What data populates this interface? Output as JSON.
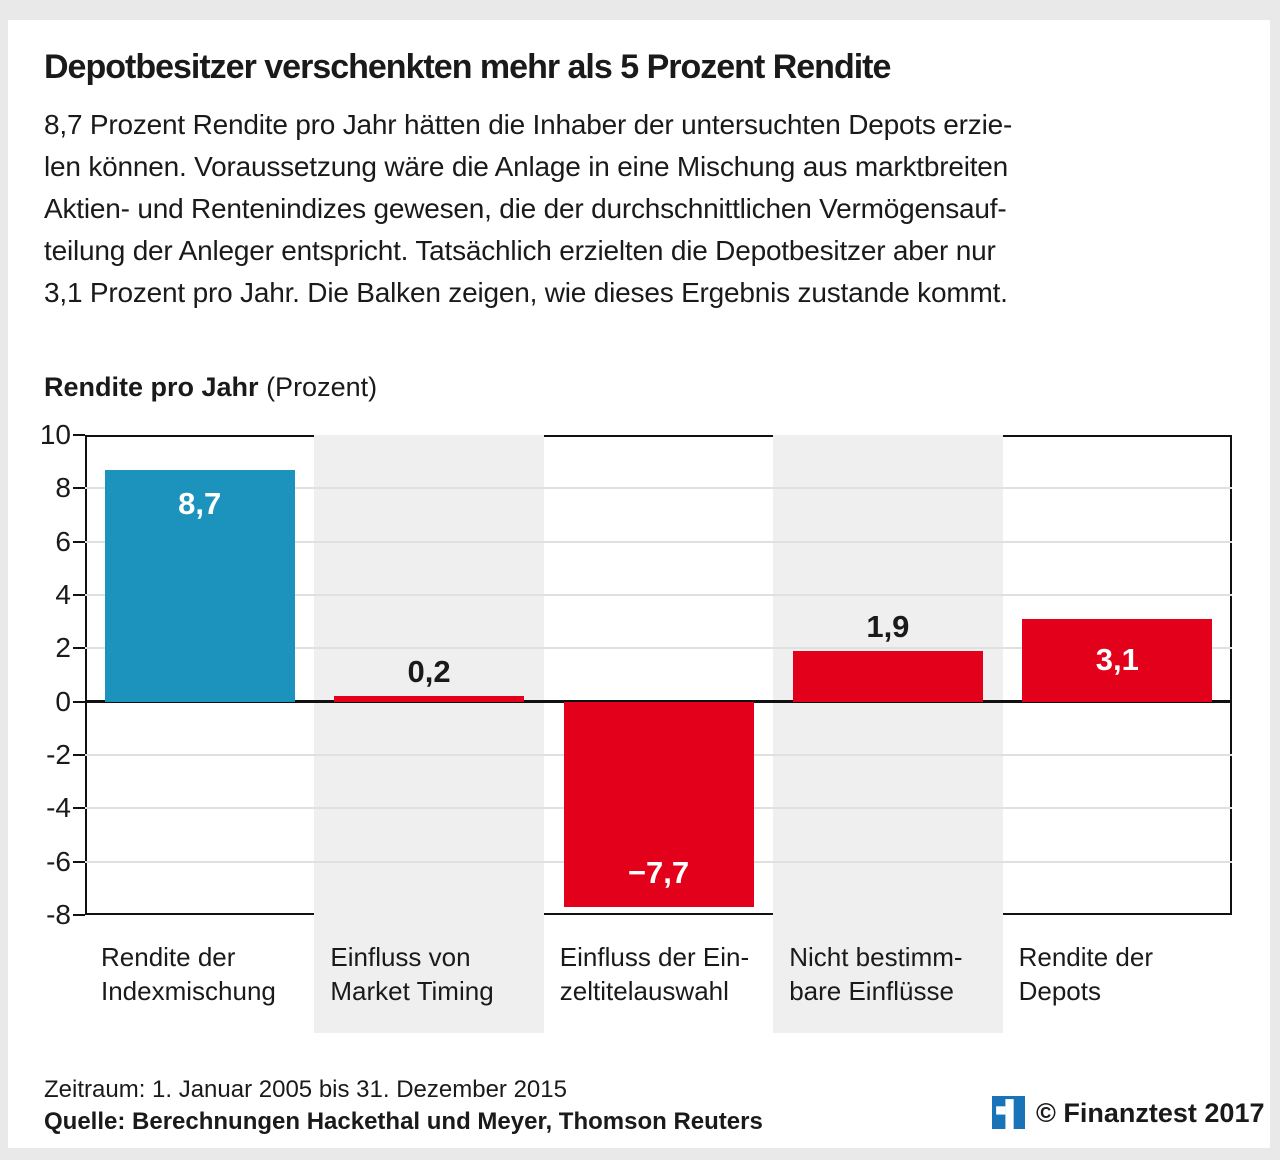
{
  "header": {
    "title": "Depotbesitzer verschenkten mehr als 5 Prozent Rendite"
  },
  "description": {
    "lines": [
      "8,7 Prozent Rendite pro Jahr hätten die Inhaber der untersuchten Depots erzie-",
      "len können. Voraussetzung wäre die Anlage in eine Mischung aus marktbreiten",
      "Aktien- und Rentenindizes gewesen, die der durchschnittlichen Vermögensauf-",
      "teilung der Anleger entspricht. Tatsächlich erzielten die Depotbesitzer aber nur",
      "3,1 Prozent pro Jahr. Die Balken zeigen, wie dieses Ergebnis zustande kommt."
    ]
  },
  "chart_data": {
    "type": "bar",
    "title": "Rendite pro Jahr (Prozent)",
    "axis_title_bold": "Rendite pro Jahr",
    "axis_title_normal": "(Prozent)",
    "ylabel": "Rendite pro Jahr (Prozent)",
    "ylim": [
      -8,
      10
    ],
    "y_ticks": [
      "10",
      "8",
      "6",
      "4",
      "2",
      "0",
      "-2",
      "-4",
      "-6",
      "-8"
    ],
    "grid": true,
    "legend": "none",
    "shaded_columns": [
      1,
      3
    ],
    "shaded_column_color": "#efefef",
    "categories": [
      "Rendite der Indexmischung",
      "Einfluss von Market Timing",
      "Einfluss der Einzeltitelauswahl",
      "Nicht bestimmbare Einflüsse",
      "Rendite der Depots"
    ],
    "values": [
      8.7,
      0.2,
      -7.7,
      1.9,
      3.1
    ],
    "bars": [
      {
        "category_line1": "Rendite der",
        "category_line2": "Indexmischung",
        "value": 8.7,
        "label": "8,7",
        "color": "#1b93bc",
        "label_pos": "inside-top"
      },
      {
        "category_line1": "Einfluss von",
        "category_line2": "Market Timing",
        "value": 0.2,
        "label": "0,2",
        "color": "#e2001a",
        "label_pos": "above"
      },
      {
        "category_line1": "Einfluss der Ein-",
        "category_line2": "zeltitelauswahl",
        "value": -7.7,
        "label": "−7,7",
        "color": "#e2001a",
        "label_pos": "inside-bottom"
      },
      {
        "category_line1": "Nicht bestimm-",
        "category_line2": "bare Einflüsse",
        "value": 1.9,
        "label": "1,9",
        "color": "#e2001a",
        "label_pos": "above"
      },
      {
        "category_line1": "Rendite der",
        "category_line2": "Depots",
        "value": 3.1,
        "label": "3,1",
        "color": "#e2001a",
        "label_pos": "inside-middle"
      }
    ]
  },
  "footer": {
    "zeitraum": "Zeitraum: 1. Januar 2005 bis 31. Dezember 2015",
    "quelle": "Quelle: Berechnungen Hackethal und Meyer, Thomson Reuters",
    "copyright": "© Finanztest 2017",
    "logo_color": "#1873b8"
  }
}
